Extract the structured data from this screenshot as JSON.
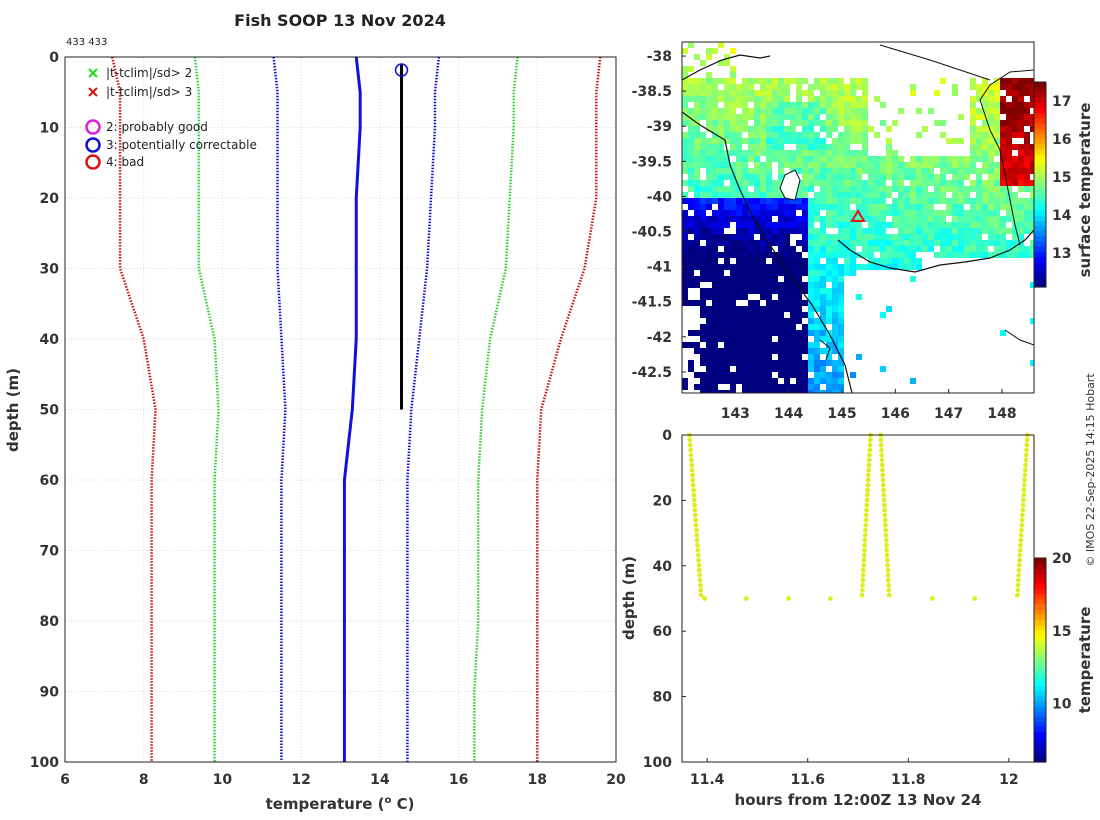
{
  "chart_data": [
    {
      "type": "line",
      "title": "Fish SOOP 13 Nov 2024",
      "id_label": "433 433",
      "xlabel": "temperature (",
      "xlabel_unit": "o",
      "xlabel_end": " C)",
      "ylabel": "depth (m)",
      "xlim": [
        6,
        20
      ],
      "ylim": [
        0,
        100
      ],
      "xticks": [
        6,
        8,
        10,
        12,
        14,
        16,
        18,
        20
      ],
      "yticks": [
        0,
        10,
        20,
        30,
        40,
        50,
        60,
        70,
        80,
        90,
        100
      ],
      "legend": [
        {
          "label": "|t-tclim|/sd> 2",
          "marker": "x",
          "color": "#22dd22"
        },
        {
          "label": "|t-tclim|/sd> 3",
          "marker": "x",
          "color": "#dd1111"
        },
        {
          "label": "2: probably good",
          "marker": "o",
          "color": "#dd22dd"
        },
        {
          "label": "3: potentially correctable",
          "marker": "o",
          "color": "#1111dd"
        },
        {
          "label": "4: bad",
          "marker": "o",
          "color": "#dd1111"
        }
      ],
      "series": [
        {
          "name": "clim-3sd",
          "style": "dotted",
          "color": "#cc1111",
          "depth": [
            0,
            5,
            10,
            20,
            30,
            40,
            50,
            60,
            70,
            80,
            90,
            100
          ],
          "values": [
            7.2,
            7.4,
            7.4,
            7.4,
            7.4,
            8.0,
            8.3,
            8.2,
            8.2,
            8.2,
            8.2,
            8.2
          ]
        },
        {
          "name": "clim-2sd",
          "style": "dotted",
          "color": "#33cc33",
          "depth": [
            0,
            5,
            10,
            20,
            30,
            40,
            50,
            60,
            70,
            80,
            90,
            100
          ],
          "values": [
            9.3,
            9.4,
            9.4,
            9.4,
            9.4,
            9.8,
            9.9,
            9.8,
            9.8,
            9.8,
            9.8,
            9.8
          ]
        },
        {
          "name": "clim-1sd",
          "style": "dotted",
          "color": "#1111cc",
          "depth": [
            0,
            5,
            10,
            20,
            30,
            40,
            50,
            60,
            70,
            80,
            90,
            100
          ],
          "values": [
            11.3,
            11.4,
            11.4,
            11.4,
            11.4,
            11.5,
            11.6,
            11.5,
            11.5,
            11.5,
            11.5,
            11.5
          ]
        },
        {
          "name": "climatology",
          "style": "solid",
          "color": "#1111dd",
          "depth": [
            0,
            5,
            10,
            20,
            30,
            40,
            50,
            60,
            70,
            80,
            90,
            100
          ],
          "values": [
            13.4,
            13.5,
            13.5,
            13.4,
            13.4,
            13.4,
            13.3,
            13.1,
            13.1,
            13.1,
            13.1,
            13.1
          ]
        },
        {
          "name": "clim+1sd",
          "style": "dotted",
          "color": "#1111cc",
          "depth": [
            0,
            5,
            10,
            20,
            30,
            40,
            50,
            60,
            70,
            80,
            90,
            100
          ],
          "values": [
            15.5,
            15.4,
            15.4,
            15.3,
            15.2,
            15.0,
            14.8,
            14.7,
            14.7,
            14.7,
            14.7,
            14.7
          ]
        },
        {
          "name": "clim+2sd",
          "style": "dotted",
          "color": "#33cc33",
          "depth": [
            0,
            5,
            10,
            20,
            30,
            40,
            50,
            60,
            70,
            80,
            90,
            100
          ],
          "values": [
            17.5,
            17.4,
            17.4,
            17.3,
            17.2,
            16.8,
            16.6,
            16.5,
            16.5,
            16.5,
            16.4,
            16.4
          ]
        },
        {
          "name": "clim+3sd",
          "style": "dotted",
          "color": "#cc1111",
          "depth": [
            0,
            5,
            10,
            20,
            30,
            40,
            50,
            60,
            70,
            80,
            90,
            100
          ],
          "values": [
            19.6,
            19.5,
            19.5,
            19.5,
            19.2,
            18.6,
            18.1,
            18.0,
            18.0,
            18.0,
            18.0,
            18.0
          ]
        },
        {
          "name": "profile",
          "style": "solid",
          "color": "#000000",
          "depth": [
            1,
            50
          ],
          "values": [
            14.55,
            14.55
          ]
        }
      ],
      "flags": [
        {
          "depth": 1,
          "temp": 14.55,
          "flag": 3
        }
      ]
    },
    {
      "type": "heatmap",
      "xticks": [
        "143",
        "144",
        "145",
        "146",
        "147",
        "148"
      ],
      "yticks": [
        "-38",
        "-38.5",
        "-39",
        "-39.5",
        "-40",
        "-40.5",
        "-41",
        "-41.5",
        "-42",
        "-42.5"
      ],
      "xlim": [
        142,
        148.6
      ],
      "ylim": [
        -42.8,
        -37.8
      ],
      "colorbar_label": "surface temperature",
      "colorbar_ticks": [
        "13",
        "14",
        "15",
        "16",
        "17"
      ],
      "colorbar_range": [
        12.1,
        17.5
      ],
      "marker": {
        "lon": 145.25,
        "lat": -40.25,
        "symbol": "triangle",
        "color": "#ee1111"
      }
    },
    {
      "type": "scatter",
      "xlabel": "hours from 12:00Z 13 Nov 24",
      "ylabel": "depth (m)",
      "xlim": [
        11.35,
        12.05
      ],
      "ylim": [
        0,
        100
      ],
      "xticks": [
        "11.4",
        "11.6",
        "11.8",
        "12"
      ],
      "yticks": [
        "0",
        "20",
        "40",
        "60",
        "80",
        "100"
      ],
      "colorbar_label": "temperature",
      "colorbar_ticks": [
        "10",
        "15",
        "20"
      ],
      "colorbar_range": [
        6,
        20
      ],
      "point_color": "#ddee22",
      "casts": [
        {
          "x0": 11.365,
          "x1": 11.388,
          "z0": 0,
          "z1": 49
        },
        {
          "x0": 11.725,
          "x1": 11.708,
          "z0": 0,
          "z1": 49
        },
        {
          "x0": 11.745,
          "x1": 11.762,
          "z0": 0,
          "z1": 49
        },
        {
          "x0": 12.037,
          "x1": 12.017,
          "z0": 0,
          "z1": 49
        }
      ],
      "surface_points": [
        {
          "x": 11.395,
          "z": 50
        },
        {
          "x": 11.478,
          "z": 50
        },
        {
          "x": 11.562,
          "z": 50
        },
        {
          "x": 11.645,
          "z": 50
        },
        {
          "x": 11.848,
          "z": 50
        },
        {
          "x": 11.932,
          "z": 50
        }
      ]
    }
  ],
  "watermark": "© IMOS 22-Sep-2025 14:15 Hobart"
}
